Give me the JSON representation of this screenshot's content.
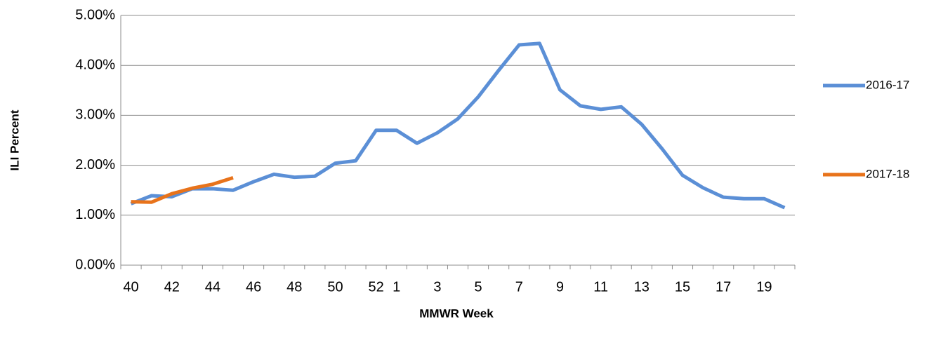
{
  "chart_data": {
    "type": "line",
    "y_label": "ILI Percent",
    "x_label": "MMWR Week",
    "categories": [
      "40",
      null,
      "42",
      null,
      "44",
      null,
      "46",
      null,
      "48",
      null,
      "50",
      null,
      "52",
      "1",
      null,
      "3",
      null,
      "5",
      null,
      "7",
      null,
      "9",
      null,
      "11",
      null,
      "13",
      null,
      "15",
      null,
      "17",
      null,
      "19",
      null
    ],
    "series": [
      {
        "name": "2016-17",
        "color": "#5b8fd6",
        "values": [
          1.23,
          1.39,
          1.37,
          1.53,
          1.53,
          1.5,
          1.67,
          1.82,
          1.76,
          1.78,
          2.04,
          2.09,
          2.7,
          2.7,
          2.44,
          2.65,
          2.93,
          3.37,
          3.9,
          4.41,
          4.44,
          3.51,
          3.19,
          3.12,
          3.17,
          2.82,
          2.33,
          1.8,
          1.55,
          1.36,
          1.33,
          1.33,
          1.15
        ]
      },
      {
        "name": "2017-18",
        "color": "#e8731b",
        "values": [
          1.27,
          1.26,
          1.43,
          1.54,
          1.62,
          1.75,
          null,
          null,
          null,
          null,
          null,
          null,
          null,
          null,
          null,
          null,
          null,
          null,
          null,
          null,
          null,
          null,
          null,
          null,
          null,
          null,
          null,
          null,
          null,
          null,
          null,
          null,
          null
        ]
      }
    ],
    "ylim": [
      0,
      5
    ],
    "yticks": [
      {
        "value": 0,
        "label": "0.00%"
      },
      {
        "value": 1,
        "label": "1.00%"
      },
      {
        "value": 2,
        "label": "2.00%"
      },
      {
        "value": 3,
        "label": "3.00%"
      },
      {
        "value": 4,
        "label": "4.00%"
      },
      {
        "value": 5,
        "label": "5.00%"
      }
    ],
    "grid": true,
    "legend": "right"
  }
}
